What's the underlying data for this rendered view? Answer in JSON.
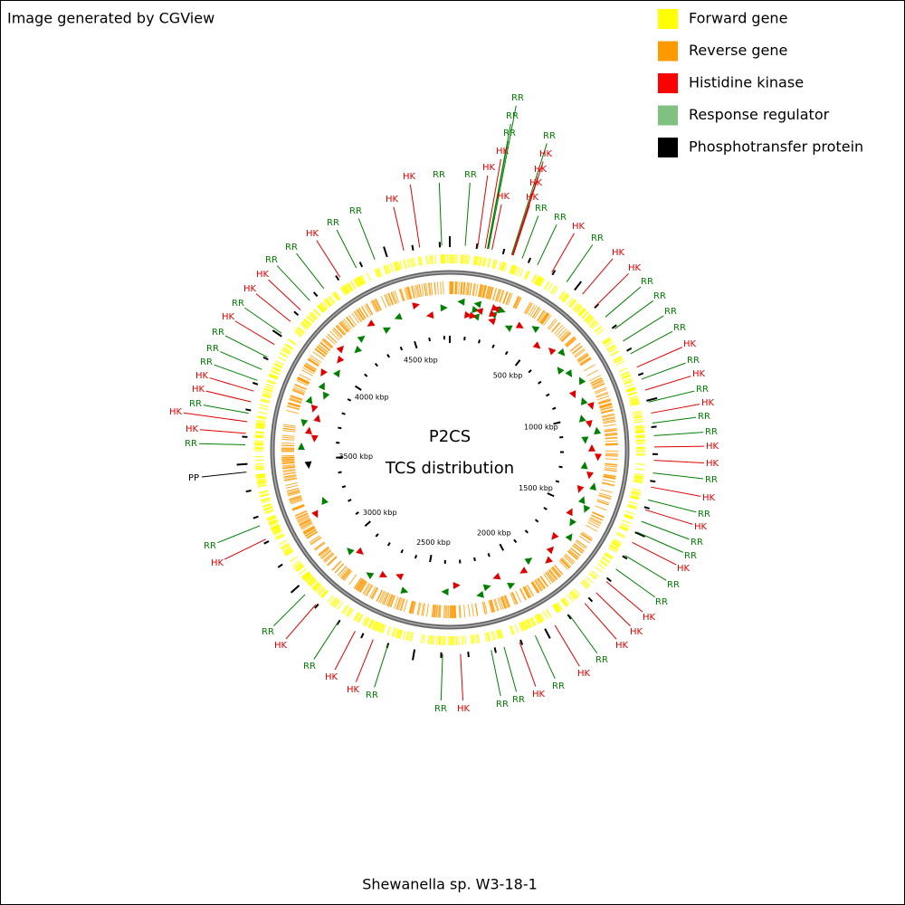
{
  "header": "Image generated by CGView",
  "legend": [
    {
      "label": "Forward gene",
      "color": "#ffff00"
    },
    {
      "label": "Reverse gene",
      "color": "#ff9900"
    },
    {
      "label": "Histidine kinase",
      "color": "#ff0000"
    },
    {
      "label": "Response regulator",
      "color": "#80c080"
    },
    {
      "label": "Phosphotransfer protein",
      "color": "#000000"
    }
  ],
  "center": {
    "title": "P2CS",
    "subtitle": "TCS distribution"
  },
  "footer": "Shewanella sp. W3-18-1",
  "scale_labels": [
    "500 kbp",
    "1000 kbp",
    "1500 kbp",
    "2000 kbp",
    "2500 kbp",
    "3000 kbp",
    "3500 kbp",
    "4000 kbp",
    "4500 kbp"
  ],
  "feature_colors": {
    "HK": "#e00000",
    "RR": "#008000",
    "PP": "#000000"
  },
  "features": [
    "RR",
    "RR",
    "RR",
    "HK",
    "RR",
    "HK",
    "HK",
    "HK",
    "HK",
    "HK",
    "HK",
    "RR",
    "RR",
    "HK",
    "RR",
    "HK",
    "HK",
    "RR",
    "RR",
    "RR",
    "RR",
    "HK",
    "RR",
    "HK",
    "RR",
    "HK",
    "RR",
    "RR",
    "HK",
    "HK",
    "RR",
    "HK",
    "RR",
    "HK",
    "RR",
    "RR",
    "HK",
    "RR",
    "RR",
    "HK",
    "HK",
    "HK",
    "RR",
    "HK",
    "RR",
    "HK",
    "RR",
    "RR",
    "HK",
    "RR",
    "RR",
    "HK",
    "HK",
    "RR",
    "HK",
    "RR",
    "HK",
    "RR",
    "PP",
    "RR",
    "HK",
    "HK",
    "RR",
    "HK",
    "HK",
    "RR",
    "RR",
    "RR",
    "HK",
    "RR",
    "HK",
    "HK",
    "RR",
    "RR",
    "HK",
    "RR",
    "RR",
    "HK",
    "HK",
    "RR",
    "RR"
  ]
}
